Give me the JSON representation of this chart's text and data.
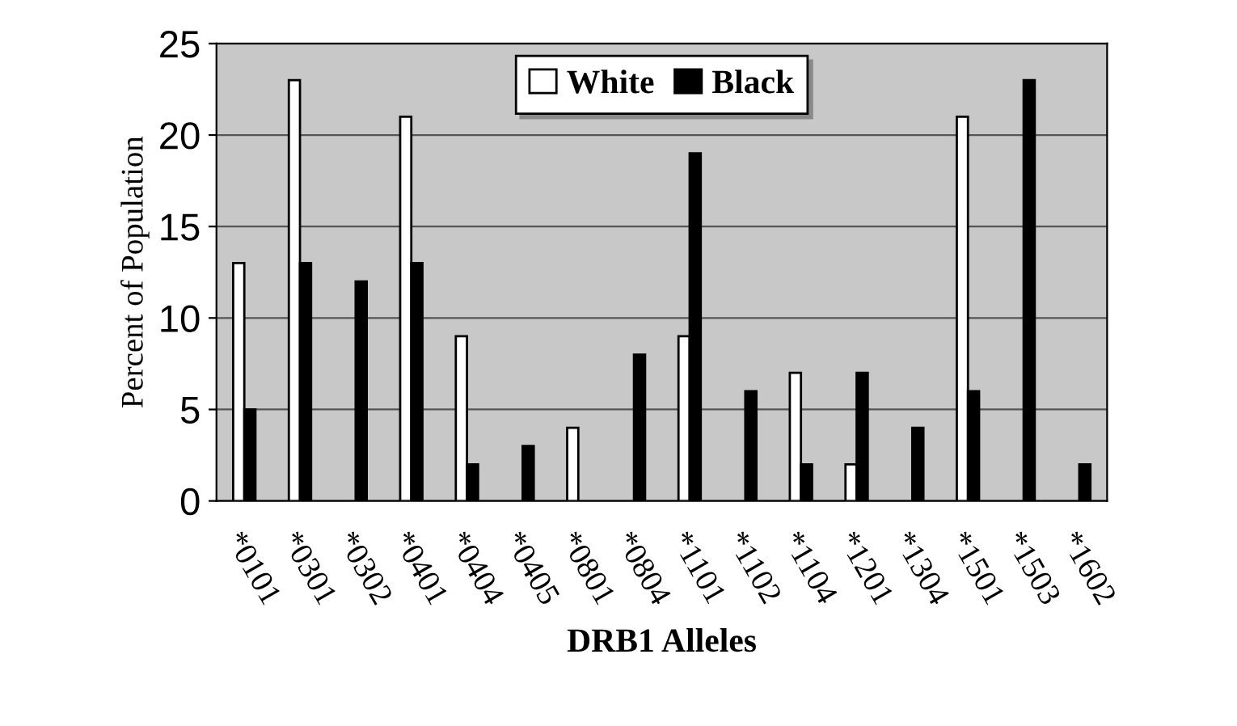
{
  "chart_data": {
    "type": "bar",
    "xlabel": "DRB1 Alleles",
    "ylabel": "Percent of Population",
    "categories": [
      "*0101",
      "*0301",
      "*0302",
      "*0401",
      "*0404",
      "*0405",
      "*0801",
      "*0804",
      "*1101",
      "*1102",
      "*1104",
      "*1201",
      "*1304",
      "*1501",
      "*1503",
      "*1602"
    ],
    "series": [
      {
        "name": "White",
        "color": "#ffffff",
        "values": [
          13,
          23,
          null,
          21,
          9,
          null,
          4,
          null,
          9,
          null,
          7,
          2,
          null,
          21,
          null,
          null
        ]
      },
      {
        "name": "Black",
        "color": "#000000",
        "values": [
          5,
          13,
          12,
          13,
          2,
          3,
          null,
          8,
          19,
          6,
          2,
          7,
          4,
          6,
          23,
          2
        ]
      }
    ],
    "ylim": [
      0,
      25
    ],
    "yticks": [
      0,
      5,
      10,
      15,
      20,
      25
    ],
    "grid": "y",
    "legend": "top"
  }
}
